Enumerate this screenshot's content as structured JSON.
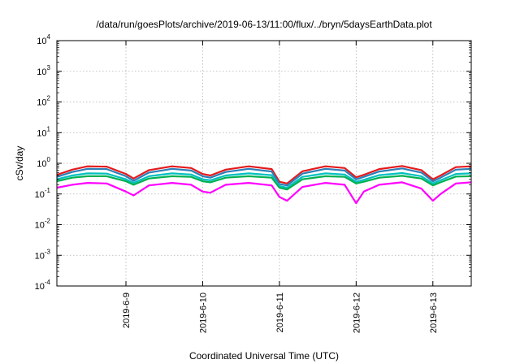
{
  "chart_data": {
    "type": "line",
    "title": "/data/run/goesPlots/archive/2019-06-13/11:00/flux/../bryn/5daysEarthData.plot",
    "xlabel": "Coordinated Universal Time (UTC)",
    "ylabel": "cSv/day",
    "yscale": "log",
    "ylim": [
      0.0001,
      10000
    ],
    "xlim_days": [
      8.1,
      13.5
    ],
    "grid": true,
    "legend": "none",
    "x_ticks": [
      {
        "label": "2019-6-9",
        "day": 9
      },
      {
        "label": "2019-6-10",
        "day": 10
      },
      {
        "label": "2019-6-11",
        "day": 11
      },
      {
        "label": "2019-6-12",
        "day": 12
      },
      {
        "label": "2019-6-13",
        "day": 13
      }
    ],
    "y_ticks": [
      {
        "base": "10",
        "exp": "4",
        "value": 10000
      },
      {
        "base": "10",
        "exp": "3",
        "value": 1000
      },
      {
        "base": "10",
        "exp": "2",
        "value": 100
      },
      {
        "base": "10",
        "exp": "1",
        "value": 10
      },
      {
        "base": "10",
        "exp": "0",
        "value": 1
      },
      {
        "base": "10",
        "exp": "-1",
        "value": 0.1
      },
      {
        "base": "10",
        "exp": "-2",
        "value": 0.01
      },
      {
        "base": "10",
        "exp": "-3",
        "value": 0.001
      },
      {
        "base": "10",
        "exp": "-4",
        "value": 0.0001
      }
    ],
    "series": [
      {
        "color": "#e41a1c",
        "x": [
          8.1,
          8.3,
          8.5,
          8.75,
          9.0,
          9.1,
          9.3,
          9.6,
          9.85,
          10.0,
          10.1,
          10.3,
          10.6,
          10.9,
          11.0,
          11.1,
          11.3,
          11.6,
          11.85,
          12.0,
          12.1,
          12.3,
          12.6,
          12.85,
          13.0,
          13.1,
          13.3,
          13.5
        ],
        "y": [
          0.42,
          0.62,
          0.8,
          0.78,
          0.45,
          0.32,
          0.6,
          0.8,
          0.7,
          0.45,
          0.4,
          0.62,
          0.8,
          0.65,
          0.25,
          0.22,
          0.55,
          0.8,
          0.7,
          0.35,
          0.42,
          0.65,
          0.82,
          0.6,
          0.3,
          0.4,
          0.75,
          0.8
        ]
      },
      {
        "color": "#2c7fb8",
        "x": [
          8.1,
          8.3,
          8.5,
          8.75,
          9.0,
          9.1,
          9.3,
          9.6,
          9.85,
          10.0,
          10.1,
          10.3,
          10.6,
          10.9,
          11.0,
          11.1,
          11.3,
          11.6,
          11.85,
          12.0,
          12.1,
          12.3,
          12.6,
          12.85,
          13.0,
          13.1,
          13.3,
          13.5
        ],
        "y": [
          0.36,
          0.52,
          0.66,
          0.65,
          0.38,
          0.27,
          0.5,
          0.66,
          0.58,
          0.38,
          0.34,
          0.52,
          0.66,
          0.54,
          0.21,
          0.19,
          0.46,
          0.66,
          0.58,
          0.3,
          0.36,
          0.54,
          0.68,
          0.5,
          0.26,
          0.34,
          0.62,
          0.66
        ]
      },
      {
        "color": "#00c0c0",
        "x": [
          8.1,
          8.3,
          8.5,
          8.75,
          9.0,
          9.1,
          9.3,
          9.6,
          9.85,
          10.0,
          10.1,
          10.3,
          10.6,
          10.9,
          11.0,
          11.1,
          11.3,
          11.6,
          11.85,
          12.0,
          12.1,
          12.3,
          12.6,
          12.85,
          13.0,
          13.1,
          13.3,
          13.5
        ],
        "y": [
          0.3,
          0.4,
          0.47,
          0.46,
          0.3,
          0.23,
          0.38,
          0.47,
          0.43,
          0.3,
          0.28,
          0.4,
          0.47,
          0.41,
          0.18,
          0.16,
          0.36,
          0.47,
          0.43,
          0.25,
          0.29,
          0.41,
          0.48,
          0.38,
          0.22,
          0.28,
          0.45,
          0.47
        ]
      },
      {
        "color": "#00b050",
        "x": [
          8.1,
          8.3,
          8.5,
          8.75,
          9.0,
          9.1,
          9.3,
          9.6,
          9.85,
          10.0,
          10.1,
          10.3,
          10.6,
          10.9,
          11.0,
          11.1,
          11.3,
          11.6,
          11.85,
          12.0,
          12.1,
          12.3,
          12.6,
          12.85,
          13.0,
          13.1,
          13.3,
          13.5
        ],
        "y": [
          0.26,
          0.34,
          0.38,
          0.38,
          0.26,
          0.2,
          0.32,
          0.38,
          0.36,
          0.26,
          0.24,
          0.34,
          0.38,
          0.34,
          0.16,
          0.14,
          0.3,
          0.38,
          0.36,
          0.22,
          0.25,
          0.34,
          0.39,
          0.32,
          0.19,
          0.24,
          0.37,
          0.38
        ]
      },
      {
        "color": "#ff00ff",
        "x": [
          8.1,
          8.3,
          8.5,
          8.75,
          9.0,
          9.1,
          9.3,
          9.6,
          9.85,
          10.0,
          10.1,
          10.3,
          10.6,
          10.9,
          11.0,
          11.1,
          11.3,
          11.6,
          11.85,
          12.0,
          12.1,
          12.3,
          12.6,
          12.85,
          13.0,
          13.1,
          13.3,
          13.5
        ],
        "y": [
          0.16,
          0.2,
          0.23,
          0.22,
          0.12,
          0.09,
          0.19,
          0.23,
          0.2,
          0.12,
          0.11,
          0.2,
          0.23,
          0.19,
          0.08,
          0.06,
          0.17,
          0.23,
          0.2,
          0.05,
          0.12,
          0.2,
          0.24,
          0.15,
          0.06,
          0.1,
          0.22,
          0.24
        ]
      }
    ]
  }
}
